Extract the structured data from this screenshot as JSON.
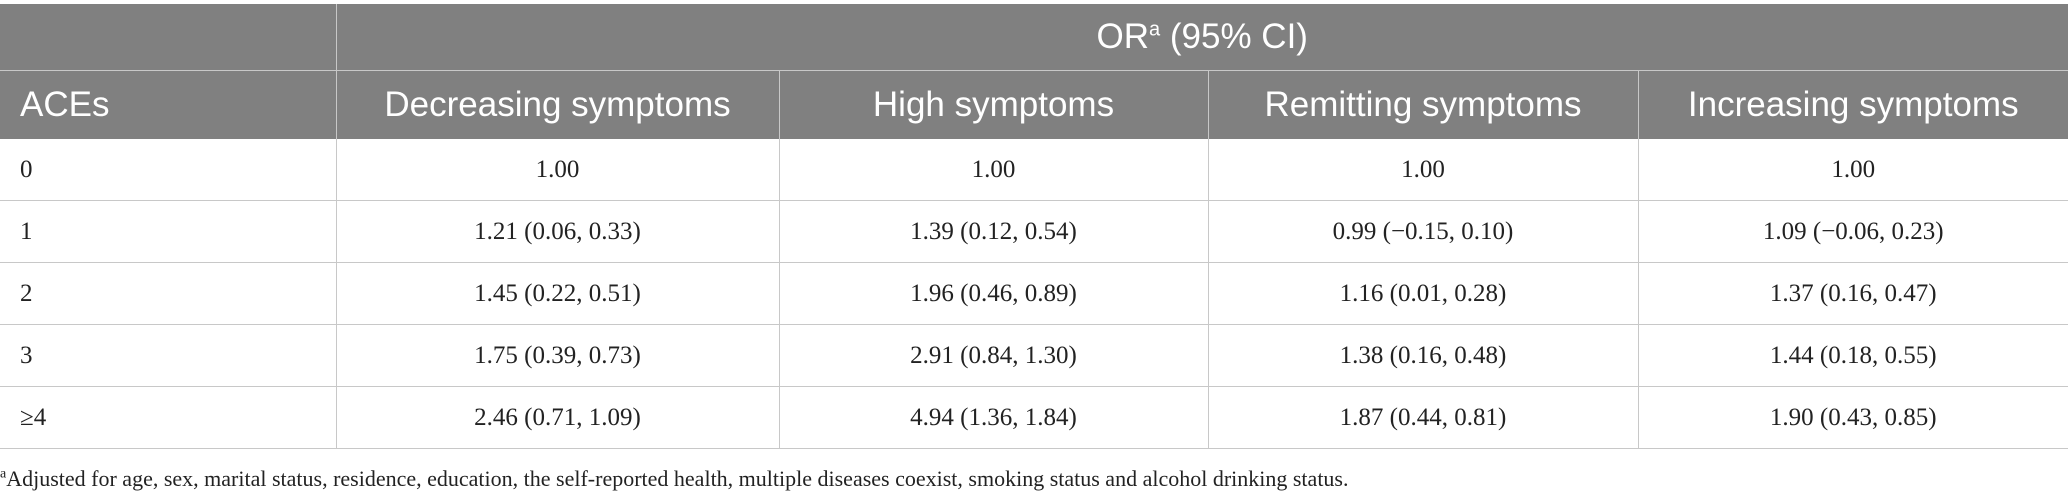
{
  "header": {
    "group_label": "OR",
    "group_sup": "a",
    "group_suffix": " (95% CI)",
    "columns": [
      "ACEs",
      "Decreasing symptoms",
      "High symptoms",
      "Remitting symptoms",
      "Increasing symptoms"
    ]
  },
  "rows": [
    [
      "0",
      "1.00",
      "1.00",
      "1.00",
      "1.00"
    ],
    [
      "1",
      "1.21 (0.06, 0.33)",
      "1.39 (0.12, 0.54)",
      "0.99 (−0.15, 0.10)",
      "1.09 (−0.06, 0.23)"
    ],
    [
      "2",
      "1.45 (0.22, 0.51)",
      "1.96 (0.46, 0.89)",
      "1.16 (0.01, 0.28)",
      "1.37 (0.16, 0.47)"
    ],
    [
      "3",
      "1.75 (0.39, 0.73)",
      "2.91 (0.84, 1.30)",
      "1.38 (0.16, 0.48)",
      "1.44 (0.18, 0.55)"
    ],
    [
      "≥4",
      "2.46 (0.71, 1.09)",
      "4.94 (1.36, 1.84)",
      "1.87 (0.44, 0.81)",
      "1.90 (0.43, 0.85)"
    ]
  ],
  "footnote": {
    "marker": "a",
    "text": "Adjusted for age, sex, marital status, residence, education, the self-reported health, multiple diseases coexist, smoking status and alcohol drinking status."
  }
}
